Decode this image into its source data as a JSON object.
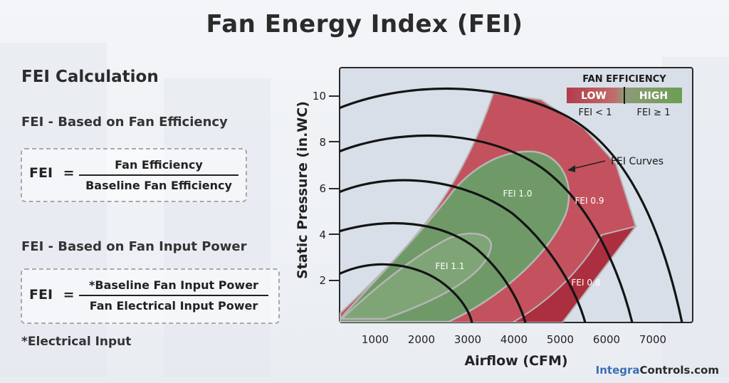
{
  "title": "Fan Energy Index (FEI)",
  "left": {
    "heading": "FEI Calculation",
    "formula1": {
      "subtitle": "FEI - Based on Fan Efficiency",
      "lhs": "FEI",
      "eq": "=",
      "numerator": "Fan Efficiency",
      "denominator": "Baseline Fan Efficiency"
    },
    "formula2": {
      "subtitle": "FEI - Based on Fan Input Power",
      "lhs": "FEI",
      "eq": "=",
      "numerator": "*Baseline Fan Input Power",
      "denominator": "Fan Electrical Input Power"
    },
    "footnote": "*Electrical Input"
  },
  "chart": {
    "xlabel": "Airflow (CFM)",
    "ylabel": "Static Pressure (in.WC)",
    "xticks": [
      "1000",
      "2000",
      "3000",
      "4000",
      "5000",
      "6000",
      "7000"
    ],
    "yticks": [
      "2",
      "4",
      "6",
      "8",
      "10"
    ],
    "legend": {
      "title": "FAN EFFICIENCY",
      "low": "LOW",
      "high": "HIGH",
      "low_note": "FEI < 1",
      "high_note": "FEI ≥ 1"
    },
    "annotation": "FEI Curves",
    "region_labels": {
      "fei11": "FEI 1.1",
      "fei10": "FEI 1.0",
      "fei09": "FEI 0.9",
      "fei08": "FEI 0.8"
    },
    "colors": {
      "background": "#d9dfe8",
      "green": "#6f9a68",
      "green_light": "#7fa576",
      "red": "#c4525e",
      "red_dark": "#ab2f3e",
      "curve": "#141414"
    }
  },
  "brand": {
    "part1": "Integra",
    "part2": "Controls.com"
  }
}
